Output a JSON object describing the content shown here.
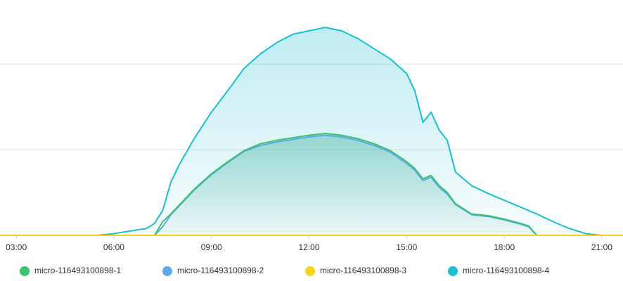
{
  "chart_data": {
    "type": "area",
    "x": [
      2.5,
      5.5,
      6,
      6.5,
      7,
      7.25,
      7.5,
      7.75,
      8,
      8.5,
      9,
      9.5,
      10,
      10.5,
      11,
      11.5,
      12,
      12.5,
      13,
      13.5,
      14,
      14.5,
      15,
      15.25,
      15.5,
      15.75,
      16,
      16.25,
      16.5,
      17,
      17.5,
      18,
      18.5,
      18.75,
      19,
      19.5,
      20,
      20.5,
      21,
      21.65
    ],
    "xlim": [
      2.5,
      21.65
    ],
    "xticks": [
      {
        "value": 3,
        "label": "03:00"
      },
      {
        "value": 6,
        "label": "06:00"
      },
      {
        "value": 9,
        "label": "09:00"
      },
      {
        "value": 12,
        "label": "12:00"
      },
      {
        "value": 15,
        "label": "15:00"
      },
      {
        "value": 18,
        "label": "18:00"
      },
      {
        "value": 21,
        "label": "21:00"
      }
    ],
    "ylim": [
      0,
      2.75
    ],
    "yticks": [
      1,
      2
    ],
    "grid": true,
    "legend": "bottom",
    "series": [
      {
        "name": "micro-116493100898-4",
        "color": "#1bbfcf",
        "values": [
          0,
          0,
          0.02,
          0.05,
          0.08,
          0.14,
          0.29,
          0.62,
          0.82,
          1.15,
          1.44,
          1.69,
          1.95,
          2.12,
          2.25,
          2.35,
          2.39,
          2.43,
          2.39,
          2.3,
          2.18,
          2.06,
          1.89,
          1.69,
          1.32,
          1.44,
          1.23,
          1.11,
          0.74,
          0.58,
          0.49,
          0.41,
          0.33,
          0.29,
          0.25,
          0.16,
          0.08,
          0.02,
          0,
          0
        ]
      },
      {
        "name": "micro-116493100898-2",
        "color": "#5ea8f0",
        "values": [
          0,
          0,
          0,
          0,
          0,
          0,
          0.1,
          0.24,
          0.34,
          0.54,
          0.71,
          0.85,
          0.98,
          1.05,
          1.09,
          1.12,
          1.15,
          1.17,
          1.15,
          1.11,
          1.05,
          0.97,
          0.84,
          0.76,
          0.64,
          0.68,
          0.56,
          0.48,
          0.36,
          0.24,
          0.22,
          0.18,
          0.13,
          0.1,
          0,
          0,
          0,
          0,
          0,
          0
        ]
      },
      {
        "name": "micro-116493100898-1",
        "color": "#3cc36b",
        "values": [
          0,
          0,
          0,
          0,
          0,
          0,
          0.16,
          0.25,
          0.35,
          0.55,
          0.72,
          0.86,
          0.99,
          1.07,
          1.11,
          1.14,
          1.17,
          1.19,
          1.17,
          1.13,
          1.07,
          0.99,
          0.86,
          0.78,
          0.66,
          0.7,
          0.58,
          0.5,
          0.37,
          0.25,
          0.23,
          0.19,
          0.14,
          0.11,
          0,
          0,
          0,
          0,
          0,
          0
        ]
      },
      {
        "name": "micro-116493100898-3",
        "color": "#f5d21f",
        "values": [
          0,
          0,
          0,
          0,
          0,
          0,
          0,
          0,
          0,
          0,
          0,
          0,
          0,
          0,
          0,
          0,
          0,
          0,
          0,
          0,
          0,
          0,
          0,
          0,
          0,
          0,
          0,
          0,
          0,
          0,
          0,
          0,
          0,
          0,
          0,
          0,
          0,
          0,
          0,
          0
        ]
      }
    ]
  }
}
